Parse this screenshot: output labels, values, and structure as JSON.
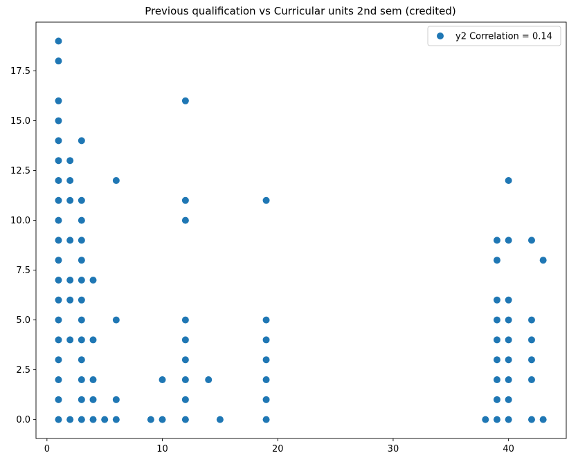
{
  "chart_data": {
    "type": "scatter",
    "title": "Previous qualification vs Curricular units 2nd sem (credited)",
    "xlabel": "",
    "ylabel": "",
    "xlim": [
      -0.95,
      45.0
    ],
    "ylim": [
      -0.95,
      19.95
    ],
    "x_ticks": [
      0,
      10,
      20,
      30,
      40
    ],
    "y_ticks": [
      0.0,
      2.5,
      5.0,
      7.5,
      10.0,
      12.5,
      15.0,
      17.5
    ],
    "grid": false,
    "legend_position": "upper-right",
    "series": [
      {
        "name": "y2 Correlation = 0.14",
        "color": "#1f77b4",
        "points": [
          [
            1,
            0
          ],
          [
            1,
            1
          ],
          [
            1,
            2
          ],
          [
            1,
            3
          ],
          [
            1,
            4
          ],
          [
            1,
            5
          ],
          [
            1,
            6
          ],
          [
            1,
            7
          ],
          [
            1,
            8
          ],
          [
            1,
            9
          ],
          [
            1,
            10
          ],
          [
            1,
            11
          ],
          [
            1,
            12
          ],
          [
            1,
            13
          ],
          [
            1,
            14
          ],
          [
            1,
            15
          ],
          [
            1,
            16
          ],
          [
            1,
            18
          ],
          [
            1,
            19
          ],
          [
            2,
            0
          ],
          [
            2,
            4
          ],
          [
            2,
            6
          ],
          [
            2,
            7
          ],
          [
            2,
            9
          ],
          [
            2,
            11
          ],
          [
            2,
            12
          ],
          [
            2,
            13
          ],
          [
            3,
            0
          ],
          [
            3,
            1
          ],
          [
            3,
            2
          ],
          [
            3,
            3
          ],
          [
            3,
            4
          ],
          [
            3,
            5
          ],
          [
            3,
            6
          ],
          [
            3,
            7
          ],
          [
            3,
            8
          ],
          [
            3,
            9
          ],
          [
            3,
            10
          ],
          [
            3,
            11
          ],
          [
            3,
            14
          ],
          [
            4,
            0
          ],
          [
            4,
            1
          ],
          [
            4,
            2
          ],
          [
            4,
            4
          ],
          [
            4,
            7
          ],
          [
            5,
            0
          ],
          [
            6,
            0
          ],
          [
            6,
            1
          ],
          [
            6,
            5
          ],
          [
            6,
            12
          ],
          [
            9,
            0
          ],
          [
            10,
            0
          ],
          [
            10,
            2
          ],
          [
            12,
            0
          ],
          [
            12,
            1
          ],
          [
            12,
            2
          ],
          [
            12,
            3
          ],
          [
            12,
            4
          ],
          [
            12,
            5
          ],
          [
            12,
            10
          ],
          [
            12,
            11
          ],
          [
            12,
            16
          ],
          [
            14,
            2
          ],
          [
            15,
            0
          ],
          [
            19,
            0
          ],
          [
            19,
            1
          ],
          [
            19,
            2
          ],
          [
            19,
            3
          ],
          [
            19,
            4
          ],
          [
            19,
            5
          ],
          [
            19,
            11
          ],
          [
            38,
            0
          ],
          [
            39,
            0
          ],
          [
            39,
            1
          ],
          [
            39,
            2
          ],
          [
            39,
            3
          ],
          [
            39,
            4
          ],
          [
            39,
            5
          ],
          [
            39,
            6
          ],
          [
            39,
            8
          ],
          [
            39,
            9
          ],
          [
            40,
            0
          ],
          [
            40,
            1
          ],
          [
            40,
            2
          ],
          [
            40,
            3
          ],
          [
            40,
            4
          ],
          [
            40,
            5
          ],
          [
            40,
            6
          ],
          [
            40,
            9
          ],
          [
            40,
            12
          ],
          [
            42,
            0
          ],
          [
            42,
            2
          ],
          [
            42,
            3
          ],
          [
            42,
            4
          ],
          [
            42,
            5
          ],
          [
            42,
            9
          ],
          [
            43,
            0
          ],
          [
            43,
            8
          ]
        ]
      }
    ]
  }
}
